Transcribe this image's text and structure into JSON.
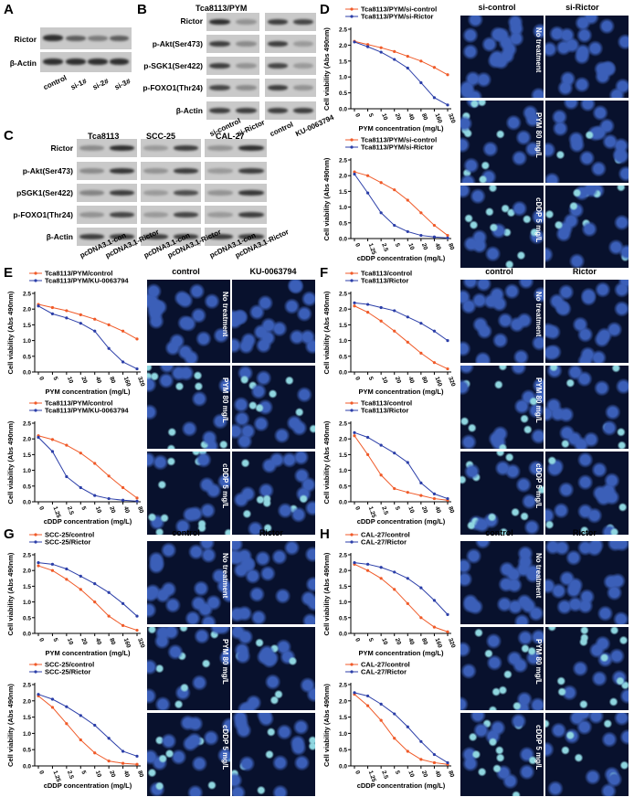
{
  "panels": {
    "A": {
      "letter": "A",
      "rows": [
        "Rictor",
        "β-Actin"
      ],
      "lanes": [
        "control",
        "si-1#",
        "si-2#",
        "si-3#"
      ]
    },
    "B": {
      "letter": "B",
      "title": "Tca8113/PYM",
      "rows": [
        "Rictor",
        "p-Akt(Ser473)",
        "p-SGK1(Ser422)",
        "p-FOXO1(Thr24)",
        "β-Actin"
      ],
      "lanes": [
        "si-control",
        "si-Rictor",
        "control",
        "KU-0063794"
      ]
    },
    "C": {
      "letter": "C",
      "groups": [
        "Tca8113",
        "SCC-25",
        "CAL-27"
      ],
      "rows": [
        "Rictor",
        "p-Akt(Ser473)",
        "pSGK1(Ser422)",
        "p-FOXO1(Thr24)",
        "β-Actin"
      ],
      "lanes": [
        "pcDNA3.1-con",
        "pcDNA3.1-Rictor",
        "pcDNA3.1-con",
        "pcDNA3.1-Rictor",
        "pcDNA3.1-con",
        "pcDNA3.1-Rictor"
      ]
    },
    "D": {
      "letter": "D",
      "cols": [
        "si-control",
        "si-Rictor"
      ],
      "rows": [
        "No treatment",
        "PYM 80 mg/L",
        "cDDP 5 mg/L"
      ]
    },
    "E": {
      "letter": "E",
      "cols": [
        "control",
        "KU-0063794"
      ],
      "rows": [
        "No treatment",
        "PYM 80 mg/L",
        "cDDP 5 mg/L"
      ]
    },
    "F": {
      "letter": "F",
      "cols": [
        "control",
        "Rictor"
      ],
      "rows": [
        "No treatment",
        "PYM 80 mg/L",
        "cDDP 5 mg/L"
      ]
    },
    "G": {
      "letter": "G",
      "cols": [
        "control",
        "Rictor"
      ],
      "rows": [
        "No treatment",
        "PYM 80 mg/L",
        "cDDP 5 mg/L"
      ]
    },
    "H": {
      "letter": "H",
      "cols": [
        "control",
        "Rictor"
      ],
      "rows": [
        "No treatment",
        "PYM 80 mg/L",
        "cDDP 5 mg/L"
      ]
    }
  },
  "colors": {
    "red": "#f05a28",
    "blue": "#2b3ea8",
    "micro_bg": "#08112d",
    "nucleus": "#3b5fb8"
  },
  "chart_data": [
    {
      "id": "D1",
      "type": "line",
      "xlabel": "PYM concentration (mg/L)",
      "ylabel": "Cell viability (Abs 490nm)",
      "ylim": [
        0.0,
        2.5
      ],
      "yticks": [
        "0.0",
        "0.5",
        "1.0",
        "1.5",
        "2.0",
        "2.5"
      ],
      "categories": [
        "0",
        "5",
        "10",
        "20",
        "40",
        "80",
        "160",
        "320"
      ],
      "series": [
        {
          "name": "Tca8113/PYM/si-control",
          "color": "red",
          "values": [
            2.12,
            2.02,
            1.92,
            1.8,
            1.65,
            1.5,
            1.3,
            1.07
          ]
        },
        {
          "name": "Tca8113/PYM/si-Rictor",
          "color": "blue",
          "values": [
            2.1,
            1.95,
            1.78,
            1.55,
            1.28,
            0.82,
            0.35,
            0.12
          ]
        }
      ]
    },
    {
      "id": "D2",
      "type": "line",
      "xlabel": "cDDP concentration (mg/L)",
      "ylabel": "Cell viability (Abs 490nm)",
      "ylim": [
        0.0,
        2.5
      ],
      "yticks": [
        "0.0",
        "0.5",
        "1.0",
        "1.5",
        "2.0",
        "2.5"
      ],
      "categories": [
        "0",
        "1.25",
        "2.5",
        "5",
        "10",
        "20",
        "40",
        "80"
      ],
      "series": [
        {
          "name": "Tca8113/PYM/si-control",
          "color": "red",
          "values": [
            2.12,
            2.0,
            1.78,
            1.55,
            1.22,
            0.82,
            0.42,
            0.1
          ]
        },
        {
          "name": "Tca8113/PYM/si-Rictor",
          "color": "blue",
          "values": [
            2.05,
            1.45,
            0.82,
            0.42,
            0.22,
            0.1,
            0.05,
            0.02
          ]
        }
      ]
    },
    {
      "id": "E1",
      "type": "line",
      "xlabel": "PYM concentration (mg/L)",
      "ylabel": "Cell viability (Abs 490nm)",
      "ylim": [
        0.0,
        2.5
      ],
      "yticks": [
        "0.0",
        "0.5",
        "1.0",
        "1.5",
        "2.0",
        "2.5"
      ],
      "categories": [
        "0",
        "5",
        "10",
        "20",
        "40",
        "80",
        "160",
        "320"
      ],
      "series": [
        {
          "name": "Tca8113/PYM/control",
          "color": "red",
          "values": [
            2.15,
            2.05,
            1.95,
            1.82,
            1.68,
            1.5,
            1.3,
            1.05
          ]
        },
        {
          "name": "Tca8113/PYM/KU-0063794",
          "color": "blue",
          "values": [
            2.1,
            1.85,
            1.72,
            1.55,
            1.3,
            0.75,
            0.32,
            0.1
          ]
        }
      ]
    },
    {
      "id": "E2",
      "type": "line",
      "xlabel": "cDDP concentration (mg/L)",
      "ylabel": "Cell viability (Abs 490nm)",
      "ylim": [
        0.0,
        2.5
      ],
      "yticks": [
        "0.0",
        "0.5",
        "1.0",
        "1.5",
        "2.0",
        "2.5"
      ],
      "categories": [
        "0",
        "1.25",
        "2.5",
        "5",
        "10",
        "20",
        "40",
        "80"
      ],
      "series": [
        {
          "name": "Tca8113/PYM/control",
          "color": "red",
          "values": [
            2.1,
            1.98,
            1.8,
            1.55,
            1.22,
            0.82,
            0.45,
            0.12
          ]
        },
        {
          "name": "Tca8113/PYM/KU-0063794",
          "color": "blue",
          "values": [
            2.05,
            1.6,
            0.8,
            0.45,
            0.2,
            0.1,
            0.05,
            0.02
          ]
        }
      ]
    },
    {
      "id": "F1",
      "type": "line",
      "xlabel": "PYM concentration (mg/L)",
      "ylabel": "Cell viability (Abs 490nm)",
      "ylim": [
        0.0,
        2.5
      ],
      "yticks": [
        "0.0",
        "0.5",
        "1.0",
        "1.5",
        "2.0",
        "2.5"
      ],
      "categories": [
        "0",
        "5",
        "10",
        "20",
        "40",
        "80",
        "160",
        "320"
      ],
      "series": [
        {
          "name": "Tca8113/control",
          "color": "red",
          "values": [
            2.1,
            1.9,
            1.62,
            1.3,
            0.95,
            0.6,
            0.3,
            0.1
          ]
        },
        {
          "name": "Tca8113/Rictor",
          "color": "blue",
          "values": [
            2.2,
            2.15,
            2.05,
            1.95,
            1.75,
            1.55,
            1.3,
            1.0
          ]
        }
      ]
    },
    {
      "id": "F2",
      "type": "line",
      "xlabel": "cDDP concentration (mg/L)",
      "ylabel": "Cell viability (Abs 490nm)",
      "ylim": [
        0.0,
        2.5
      ],
      "yticks": [
        "0.0",
        "0.5",
        "1.0",
        "1.5",
        "2.0",
        "2.5"
      ],
      "categories": [
        "0",
        "1.25",
        "2.5",
        "5",
        "10",
        "20",
        "40",
        "80"
      ],
      "series": [
        {
          "name": "Tca8113/control",
          "color": "red",
          "values": [
            2.1,
            1.5,
            0.85,
            0.42,
            0.3,
            0.2,
            0.1,
            0.05
          ]
        },
        {
          "name": "Tca8113/Rictor",
          "color": "blue",
          "values": [
            2.2,
            2.05,
            1.8,
            1.55,
            1.25,
            0.6,
            0.25,
            0.1
          ]
        }
      ]
    },
    {
      "id": "G1",
      "type": "line",
      "xlabel": "PYM concentration (mg/L)",
      "ylabel": "Cell viability (Abs 490nm)",
      "ylim": [
        0.0,
        2.5
      ],
      "yticks": [
        "0.0",
        "0.5",
        "1.0",
        "1.5",
        "2.0",
        "2.5"
      ],
      "categories": [
        "0",
        "5",
        "10",
        "20",
        "40",
        "80",
        "160",
        "320"
      ],
      "series": [
        {
          "name": "SCC-25/control",
          "color": "red",
          "values": [
            2.15,
            2.0,
            1.72,
            1.4,
            1.0,
            0.55,
            0.25,
            0.1
          ]
        },
        {
          "name": "SCC-25/Rictor",
          "color": "blue",
          "values": [
            2.25,
            2.2,
            2.05,
            1.82,
            1.58,
            1.3,
            0.95,
            0.55
          ]
        }
      ]
    },
    {
      "id": "G2",
      "type": "line",
      "xlabel": "cDDP concentration (mg/L)",
      "ylabel": "Cell viability (Abs 490nm)",
      "ylim": [
        0.0,
        2.5
      ],
      "yticks": [
        "0.0",
        "0.5",
        "1.0",
        "1.5",
        "2.0",
        "2.5"
      ],
      "categories": [
        "0",
        "1.25",
        "2.5",
        "5",
        "10",
        "20",
        "40",
        "80"
      ],
      "series": [
        {
          "name": "SCC-25/control",
          "color": "red",
          "values": [
            2.15,
            1.8,
            1.3,
            0.8,
            0.4,
            0.15,
            0.08,
            0.05
          ]
        },
        {
          "name": "SCC-25/Rictor",
          "color": "blue",
          "values": [
            2.2,
            2.05,
            1.82,
            1.55,
            1.25,
            0.85,
            0.45,
            0.3
          ]
        }
      ]
    },
    {
      "id": "H1",
      "type": "line",
      "xlabel": "PYM concentration (mg/L)",
      "ylabel": "Cell viability (Abs 490nm)",
      "ylim": [
        0.0,
        2.5
      ],
      "yticks": [
        "0.0",
        "0.5",
        "1.0",
        "1.5",
        "2.0",
        "2.5"
      ],
      "categories": [
        "0",
        "5",
        "10",
        "20",
        "40",
        "80",
        "160",
        "320"
      ],
      "series": [
        {
          "name": "CAL-27/control",
          "color": "red",
          "values": [
            2.2,
            2.0,
            1.75,
            1.4,
            0.95,
            0.5,
            0.2,
            0.05
          ]
        },
        {
          "name": "CAL-27/Rictor",
          "color": "blue",
          "values": [
            2.25,
            2.2,
            2.1,
            1.95,
            1.75,
            1.45,
            1.05,
            0.6
          ]
        }
      ]
    },
    {
      "id": "H2",
      "type": "line",
      "xlabel": "cDDP concentration (mg/L)",
      "ylabel": "Cell viability (Abs 490nm)",
      "ylim": [
        0.0,
        2.5
      ],
      "yticks": [
        "0.0",
        "0.5",
        "1.0",
        "1.5",
        "2.0",
        "2.5"
      ],
      "categories": [
        "0",
        "1.25",
        "2.5",
        "5",
        "10",
        "20",
        "40",
        "80"
      ],
      "series": [
        {
          "name": "CAL-27/control",
          "color": "red",
          "values": [
            2.2,
            1.85,
            1.4,
            0.85,
            0.45,
            0.2,
            0.1,
            0.05
          ]
        },
        {
          "name": "CAL-27/Rictor",
          "color": "blue",
          "values": [
            2.25,
            2.15,
            1.9,
            1.6,
            1.2,
            0.75,
            0.35,
            0.1
          ]
        }
      ]
    }
  ]
}
